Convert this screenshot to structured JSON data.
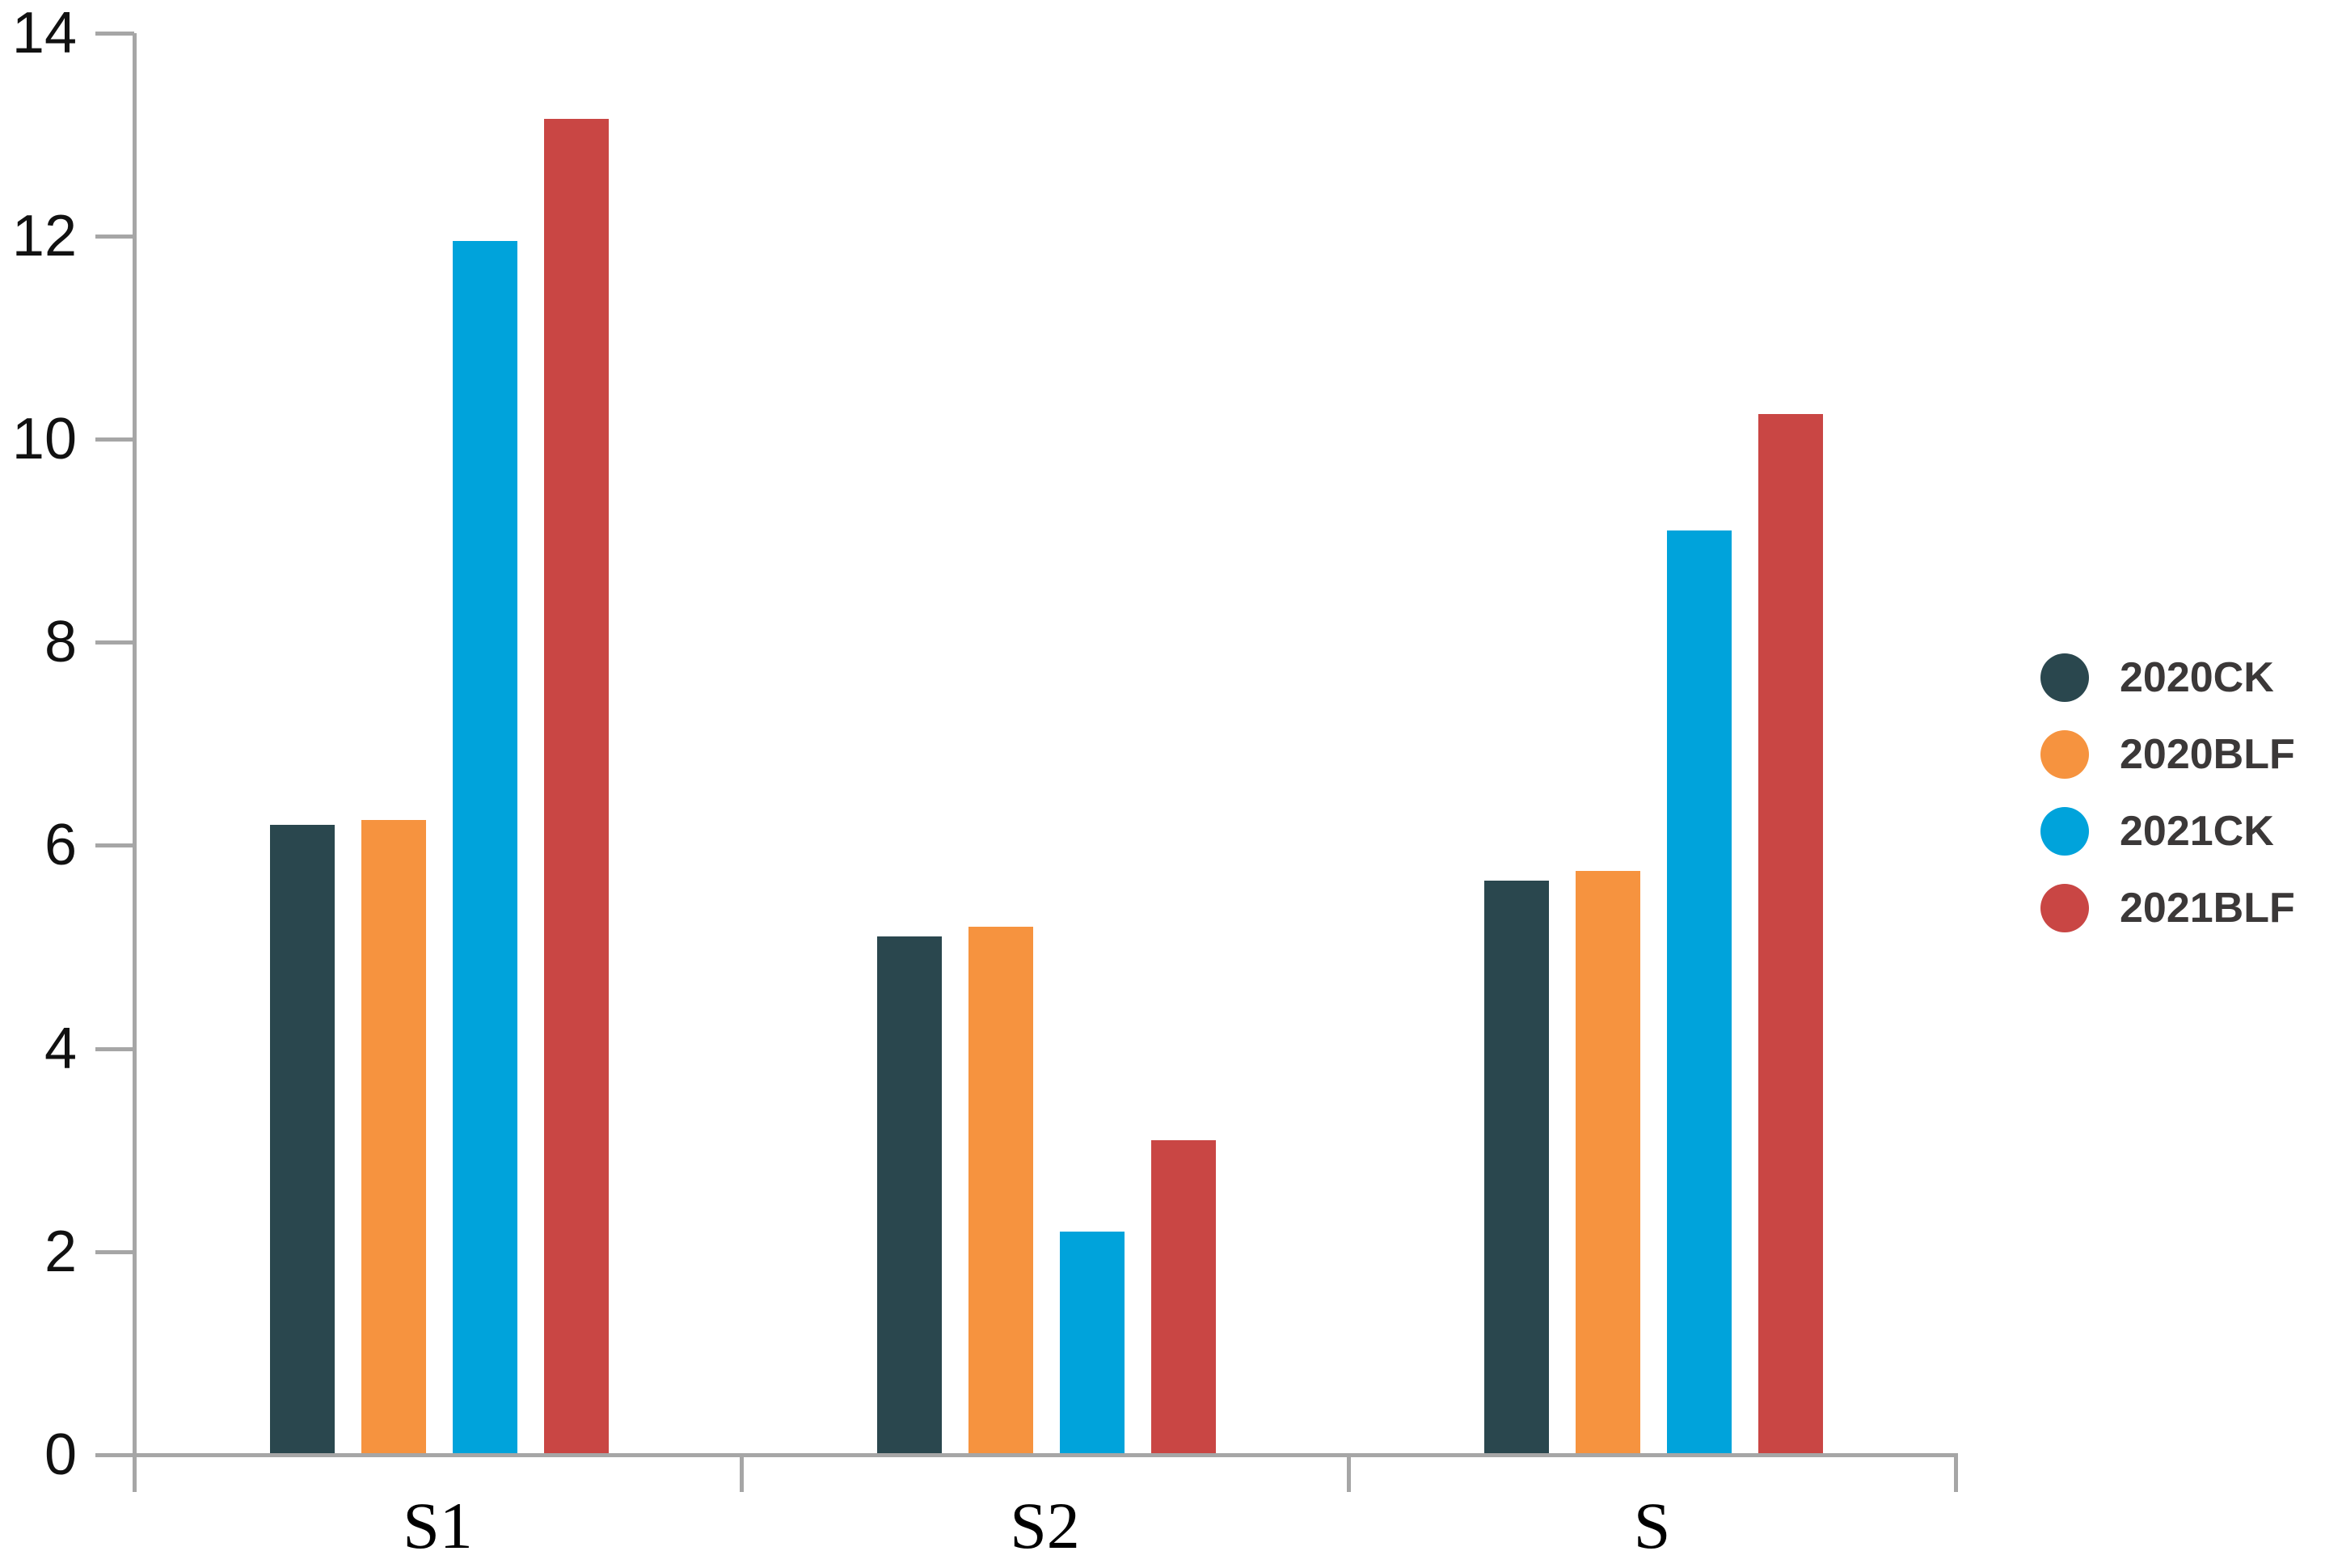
{
  "chart_data": {
    "type": "bar",
    "title": "",
    "xlabel": "",
    "ylabel": "",
    "categories": [
      "S1",
      "S2",
      "S"
    ],
    "series": [
      {
        "name": "2020CK",
        "color": "#2A474E",
        "values": [
          6.2,
          5.1,
          5.65
        ]
      },
      {
        "name": "2020BLF",
        "color": "#F6933F",
        "values": [
          6.25,
          5.2,
          5.75
        ]
      },
      {
        "name": "2021CK",
        "color": "#00A3DB",
        "values": [
          11.95,
          2.2,
          9.1
        ]
      },
      {
        "name": "2021BLF",
        "color": "#C94644",
        "values": [
          13.15,
          3.1,
          10.25
        ]
      }
    ],
    "ylim": [
      0,
      14
    ],
    "yticks": [
      0,
      2,
      4,
      6,
      8,
      10,
      12,
      14
    ],
    "grid": false,
    "legend_position": "right"
  },
  "colors": {
    "axis": "#A6A6A6",
    "y_tick_label": "#111111",
    "x_tick_label": "#000000",
    "legend_text": "#3B3838",
    "background": "#FFFFFF"
  }
}
